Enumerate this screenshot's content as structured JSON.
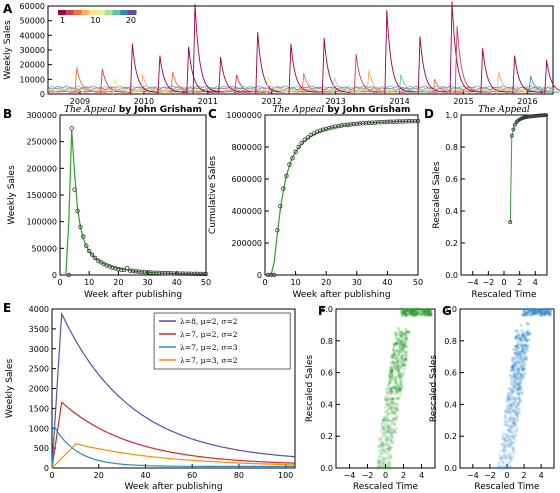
{
  "chart_data": [
    {
      "id": "A",
      "type": "line",
      "panel_label": "A",
      "ylabel": "Weekly Sales",
      "ylim": [
        0,
        60000
      ],
      "yticks": [
        "0",
        "10000",
        "20000",
        "30000",
        "40000",
        "50000",
        "60000"
      ],
      "xlim": [
        2008.5,
        2016.4
      ],
      "xticks": [
        "2009",
        "2010",
        "2011",
        "2012",
        "2013",
        "2014",
        "2015",
        "2016"
      ],
      "colorbar": {
        "min_label": "1",
        "mid_label": "10",
        "max_label": "20",
        "colors": [
          "#9e0142",
          "#d53e4f",
          "#f46d43",
          "#fdae61",
          "#fee08b",
          "#e6f598",
          "#abdda4",
          "#66c2a5",
          "#3288bd",
          "#5e4fa2"
        ]
      },
      "spikes": [
        {
          "t": 2008.95,
          "h": 17000,
          "c": 2
        },
        {
          "t": 2009.35,
          "h": 16000,
          "c": 1
        },
        {
          "t": 2009.55,
          "h": 9000,
          "c": 4
        },
        {
          "t": 2009.82,
          "h": 33000,
          "c": 0
        },
        {
          "t": 2009.98,
          "h": 12000,
          "c": 3
        },
        {
          "t": 2010.25,
          "h": 25000,
          "c": 0
        },
        {
          "t": 2010.45,
          "h": 14000,
          "c": 2
        },
        {
          "t": 2010.7,
          "h": 31000,
          "c": 0
        },
        {
          "t": 2010.8,
          "h": 60000,
          "c": 0
        },
        {
          "t": 2011.2,
          "h": 24000,
          "c": 0
        },
        {
          "t": 2011.45,
          "h": 12000,
          "c": 1
        },
        {
          "t": 2011.78,
          "h": 41000,
          "c": 0
        },
        {
          "t": 2011.95,
          "h": 11000,
          "c": 5
        },
        {
          "t": 2012.3,
          "h": 33000,
          "c": 0
        },
        {
          "t": 2012.5,
          "h": 13000,
          "c": 2
        },
        {
          "t": 2012.82,
          "h": 37000,
          "c": 0
        },
        {
          "t": 2012.98,
          "h": 10000,
          "c": 6
        },
        {
          "t": 2013.32,
          "h": 26000,
          "c": 1
        },
        {
          "t": 2013.52,
          "h": 15000,
          "c": 3
        },
        {
          "t": 2013.8,
          "h": 56000,
          "c": 0
        },
        {
          "t": 2014.02,
          "h": 12000,
          "c": 7
        },
        {
          "t": 2014.32,
          "h": 38000,
          "c": 0
        },
        {
          "t": 2014.55,
          "h": 9000,
          "c": 2
        },
        {
          "t": 2014.82,
          "h": 62000,
          "c": 0
        },
        {
          "t": 2014.9,
          "h": 45000,
          "c": 1
        },
        {
          "t": 2015.3,
          "h": 30000,
          "c": 0
        },
        {
          "t": 2015.55,
          "h": 14000,
          "c": 3
        },
        {
          "t": 2015.8,
          "h": 25000,
          "c": 0
        },
        {
          "t": 2016.05,
          "h": 11000,
          "c": 8
        },
        {
          "t": 2016.3,
          "h": 22000,
          "c": 0
        }
      ]
    },
    {
      "id": "B",
      "type": "line",
      "panel_label": "B",
      "title_italic": "The Appeal",
      "title_rest": " by John Grisham",
      "xlabel": "Week after publishing",
      "ylabel": "Weekly Sales",
      "xlim": [
        0,
        50
      ],
      "ylim": [
        0,
        300000
      ],
      "xticks": [
        "0",
        "10",
        "20",
        "30",
        "40",
        "50"
      ],
      "yticks": [
        "0",
        "50000",
        "100000",
        "150000",
        "200000",
        "250000",
        "300000"
      ],
      "fit_color": "#2ca02c",
      "points": [
        [
          3,
          0
        ],
        [
          4,
          275000
        ],
        [
          5,
          160000
        ],
        [
          6,
          120000
        ],
        [
          7,
          90000
        ],
        [
          8,
          72000
        ],
        [
          9,
          55000
        ],
        [
          10,
          45000
        ],
        [
          11,
          38000
        ],
        [
          12,
          32000
        ],
        [
          13,
          27000
        ],
        [
          14,
          24000
        ],
        [
          15,
          21000
        ],
        [
          16,
          18000
        ],
        [
          17,
          16000
        ],
        [
          18,
          14000
        ],
        [
          19,
          12500
        ],
        [
          20,
          11000
        ],
        [
          21,
          10000
        ],
        [
          22,
          9500
        ],
        [
          23,
          13000
        ],
        [
          24,
          8000
        ],
        [
          25,
          7500
        ],
        [
          26,
          7000
        ],
        [
          27,
          6500
        ],
        [
          28,
          6000
        ],
        [
          29,
          5500
        ],
        [
          30,
          5000
        ],
        [
          31,
          4700
        ],
        [
          32,
          4400
        ],
        [
          33,
          4100
        ],
        [
          34,
          3900
        ],
        [
          35,
          3700
        ],
        [
          36,
          3500
        ],
        [
          37,
          3300
        ],
        [
          38,
          3100
        ],
        [
          39,
          3000
        ],
        [
          40,
          2800
        ],
        [
          41,
          2700
        ],
        [
          42,
          2600
        ],
        [
          43,
          2500
        ],
        [
          44,
          2400
        ],
        [
          45,
          2300
        ],
        [
          46,
          2200
        ],
        [
          47,
          2100
        ],
        [
          48,
          2000
        ],
        [
          49,
          1900
        ],
        [
          50,
          1800
        ]
      ],
      "fit": [
        [
          2,
          0
        ],
        [
          3,
          100000
        ],
        [
          4,
          272000
        ],
        [
          5,
          190000
        ],
        [
          6,
          125000
        ],
        [
          7,
          90000
        ],
        [
          8,
          68000
        ],
        [
          9,
          54000
        ],
        [
          10,
          44000
        ],
        [
          12,
          32000
        ],
        [
          14,
          24000
        ],
        [
          16,
          19000
        ],
        [
          18,
          15000
        ],
        [
          20,
          12000
        ],
        [
          25,
          7500
        ],
        [
          30,
          5000
        ],
        [
          35,
          3500
        ],
        [
          40,
          2700
        ],
        [
          45,
          2200
        ],
        [
          50,
          1800
        ]
      ]
    },
    {
      "id": "C",
      "type": "line",
      "panel_label": "C",
      "title_italic": "The Appeal",
      "title_rest": " by John Grisham",
      "xlabel": "Week after publishing",
      "ylabel": "Cumulative Sales",
      "xlim": [
        0,
        50
      ],
      "ylim": [
        0,
        1000000
      ],
      "xticks": [
        "0",
        "10",
        "20",
        "30",
        "40",
        "50"
      ],
      "yticks": [
        "0",
        "200000",
        "400000",
        "600000",
        "800000",
        "1000000"
      ],
      "fit_color": "#2ca02c",
      "points": [
        [
          1,
          0
        ],
        [
          2,
          0
        ],
        [
          3,
          0
        ],
        [
          4,
          280000
        ],
        [
          5,
          430000
        ],
        [
          6,
          540000
        ],
        [
          7,
          620000
        ],
        [
          8,
          690000
        ],
        [
          9,
          730000
        ],
        [
          10,
          770000
        ],
        [
          11,
          800000
        ],
        [
          12,
          825000
        ],
        [
          13,
          845000
        ],
        [
          14,
          860000
        ],
        [
          15,
          875000
        ],
        [
          16,
          885000
        ],
        [
          17,
          895000
        ],
        [
          18,
          902000
        ],
        [
          19,
          908000
        ],
        [
          20,
          913000
        ],
        [
          21,
          918000
        ],
        [
          22,
          922000
        ],
        [
          23,
          928000
        ],
        [
          24,
          931000
        ],
        [
          25,
          934000
        ],
        [
          26,
          937000
        ],
        [
          27,
          939000
        ],
        [
          28,
          941000
        ],
        [
          29,
          943000
        ],
        [
          30,
          945000
        ],
        [
          31,
          947000
        ],
        [
          32,
          948000
        ],
        [
          33,
          949500
        ],
        [
          34,
          951000
        ],
        [
          35,
          952000
        ],
        [
          36,
          953000
        ],
        [
          37,
          954000
        ],
        [
          38,
          955000
        ],
        [
          39,
          956000
        ],
        [
          40,
          957000
        ],
        [
          41,
          958000
        ],
        [
          42,
          958500
        ],
        [
          43,
          959000
        ],
        [
          44,
          959500
        ],
        [
          45,
          960000
        ],
        [
          46,
          960500
        ],
        [
          47,
          961000
        ],
        [
          48,
          961500
        ],
        [
          49,
          962000
        ],
        [
          50,
          962500
        ]
      ],
      "fit": [
        [
          2,
          0
        ],
        [
          3,
          80000
        ],
        [
          4,
          250000
        ],
        [
          5,
          410000
        ],
        [
          6,
          530000
        ],
        [
          7,
          620000
        ],
        [
          8,
          685000
        ],
        [
          9,
          735000
        ],
        [
          10,
          770000
        ],
        [
          12,
          820000
        ],
        [
          14,
          855000
        ],
        [
          16,
          880000
        ],
        [
          18,
          898000
        ],
        [
          20,
          912000
        ],
        [
          25,
          933000
        ],
        [
          30,
          945000
        ],
        [
          35,
          952000
        ],
        [
          40,
          957000
        ],
        [
          45,
          960000
        ],
        [
          50,
          962000
        ]
      ]
    },
    {
      "id": "D",
      "type": "scatter",
      "panel_label": "D",
      "title_italic": "The Appeal",
      "xlabel": "Rescaled Time",
      "ylabel": "Rescaled Sales",
      "xlim": [
        -5.5,
        5.5
      ],
      "ylim": [
        0,
        1.0
      ],
      "xticks": [
        "−4",
        "−2",
        "0",
        "2",
        "4"
      ],
      "yticks": [
        "0.0",
        "0.2",
        "0.4",
        "0.6",
        "0.8",
        "1.0"
      ],
      "fit_color": "#2ca02c",
      "points": [
        [
          0.8,
          0.33
        ],
        [
          1.0,
          0.87
        ],
        [
          1.2,
          0.91
        ],
        [
          1.4,
          0.94
        ],
        [
          1.6,
          0.955
        ],
        [
          1.8,
          0.965
        ],
        [
          2.0,
          0.972
        ],
        [
          2.2,
          0.977
        ],
        [
          2.4,
          0.981
        ],
        [
          2.6,
          0.984
        ],
        [
          2.8,
          0.986
        ],
        [
          3.0,
          0.988
        ],
        [
          3.2,
          0.99
        ],
        [
          3.4,
          0.991
        ],
        [
          3.6,
          0.992
        ],
        [
          3.8,
          0.993
        ],
        [
          4.0,
          0.994
        ],
        [
          4.2,
          0.995
        ],
        [
          4.4,
          0.996
        ],
        [
          4.6,
          0.997
        ],
        [
          4.8,
          0.998
        ],
        [
          5.0,
          0.998
        ],
        [
          5.2,
          0.999
        ],
        [
          5.4,
          0.999
        ]
      ]
    },
    {
      "id": "E",
      "type": "line",
      "panel_label": "E",
      "xlabel": "Week after publishing",
      "ylabel": "Weekly Sales",
      "xlim": [
        0,
        104
      ],
      "ylim": [
        0,
        4000
      ],
      "xticks": [
        "0",
        "20",
        "40",
        "60",
        "80",
        "100"
      ],
      "yticks": [
        "0",
        "500",
        "1000",
        "1500",
        "2000",
        "2500",
        "3000",
        "3500",
        "4000"
      ],
      "legend_position": "upper-right",
      "series": [
        {
          "name": "λ=8, μ=2, σ=2",
          "color": "#5b4ea6",
          "peak": 3750,
          "tpeak": 4,
          "decay": 30
        },
        {
          "name": "λ=7, μ=2, σ=2",
          "color": "#d62728",
          "peak": 1600,
          "tpeak": 4,
          "decay": 30
        },
        {
          "name": "λ=7, μ=2, σ=3",
          "color": "#2b8cbe",
          "peak": 1000,
          "tpeak": 1,
          "decay": 10
        },
        {
          "name": "λ=7, μ=3, σ=2",
          "color": "#ff8c00",
          "peak": 590,
          "tpeak": 10,
          "decay": 40
        }
      ]
    },
    {
      "id": "F",
      "type": "scatter",
      "panel_label": "F",
      "xlabel": "Rescaled Time",
      "ylabel": "Rescaled Sales",
      "xlim": [
        -5.5,
        5.5
      ],
      "ylim": [
        0,
        1.0
      ],
      "xticks": [
        "−4",
        "−2",
        "0",
        "2",
        "4"
      ],
      "yticks": [
        "0.0",
        "0.2",
        "0.4",
        "0.6",
        "0.8",
        "1.0"
      ],
      "cloud_color": "#2ca02c"
    },
    {
      "id": "G",
      "type": "scatter",
      "panel_label": "G",
      "xlabel": "Rescaled Time",
      "ylabel": "Rescaled Sales",
      "xlim": [
        -5.5,
        5.5
      ],
      "ylim": [
        0,
        1.0
      ],
      "xticks": [
        "−4",
        "−2",
        "0",
        "2",
        "4"
      ],
      "yticks": [
        "0.0",
        "0.2",
        "0.4",
        "0.6",
        "0.8",
        "1.0"
      ],
      "cloud_color": "#3a8fd0"
    }
  ]
}
